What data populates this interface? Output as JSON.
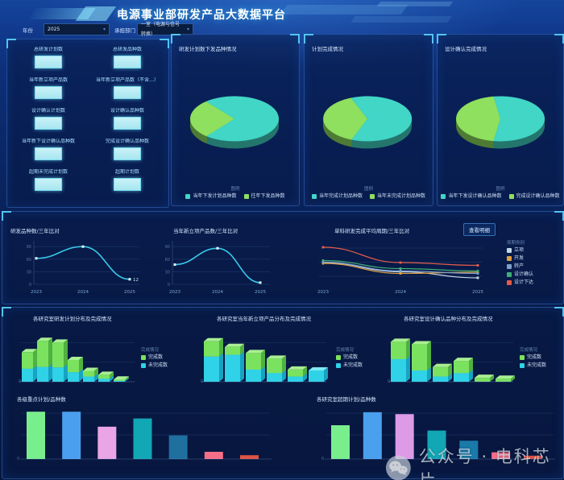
{
  "header": {
    "title": "电源事业部研发产品大数据平台",
    "filters": {
      "year_label": "年份",
      "year_value": "2025",
      "dept_label": "承担部门",
      "dept_value": "一室（电源与信号转换）"
    }
  },
  "stats_panel": {
    "cards": [
      {
        "label": "总研发计划数"
      },
      {
        "label": "总研发品种数"
      },
      {
        "label": "当年新立项产品数"
      },
      {
        "label": "当年新立项产品数（不含…）"
      },
      {
        "label": "设计确认计划数"
      },
      {
        "label": "设计确认品种数"
      },
      {
        "label": "当年新下设计确认品种数"
      },
      {
        "label": "完成设计确认品种数"
      },
      {
        "label": "超期未完成计划数"
      },
      {
        "label": "超期计划数"
      }
    ]
  },
  "middle": {
    "detail_button": "查看明细"
  },
  "watermark": {
    "icon": "wechat-icon",
    "text": "公众号 · 电科芯片"
  },
  "colors": {
    "accent_cyan": "#53c4f0",
    "pie_teal": "#41d6c6",
    "pie_green": "#8ee05e",
    "bar_cyan": "#2fd2e6",
    "bar_green": "#7be25f",
    "line_cyan": "#38c8e8"
  },
  "chart_data": [
    {
      "type": "pie",
      "title": "研发计划数下发品种情况",
      "labels": [
        "当年下发计划品种数",
        "往年下发品种数"
      ],
      "values": [
        72,
        28
      ],
      "colors": [
        "#41d6c6",
        "#8ee05e"
      ],
      "start_angle": 230,
      "legend_title": "图例",
      "legend_position": "bottom"
    },
    {
      "type": "pie",
      "title": "计划完成情况",
      "labels": [
        "当年完成计划品种数",
        "当年未完成计划品种数"
      ],
      "values": [
        62,
        38
      ],
      "colors": [
        "#41d6c6",
        "#8ee05e"
      ],
      "start_angle": 248,
      "legend_title": "图例",
      "legend_position": "bottom"
    },
    {
      "type": "pie",
      "title": "设计确认完成情况",
      "labels": [
        "当年下发设计确认品种数",
        "完成设计确认品种数"
      ],
      "values": [
        55,
        45
      ],
      "colors": [
        "#41d6c6",
        "#8ee05e"
      ],
      "start_angle": 261,
      "legend_title": "图例",
      "legend_position": "bottom"
    },
    {
      "type": "line",
      "title": "研发品种数/三年比对",
      "x": [
        "2023",
        "2024",
        "2025"
      ],
      "values": [
        62,
        90,
        12
      ],
      "end_label": "12",
      "color": "#38c8e8",
      "ylim": [
        0,
        100
      ],
      "y_ticks": [
        0,
        30,
        60,
        90
      ],
      "grid": true
    },
    {
      "type": "line",
      "title": "当年新立项产品数/三年比对",
      "x": [
        "2023",
        "2024",
        "2025"
      ],
      "values": [
        47,
        86,
        4
      ],
      "color": "#38c8e8",
      "ylim": [
        0,
        100
      ],
      "y_ticks": [
        0,
        30,
        60,
        90
      ],
      "grid": true
    },
    {
      "type": "multiline",
      "title": "单科研发完成平均周期/三年比对",
      "x": [
        "2023",
        "2024",
        "2025"
      ],
      "ylim": [
        0,
        100
      ],
      "grid": true,
      "legend_title": "周期类别",
      "legend_position": "right",
      "series": [
        {
          "name": "立项",
          "color": "#c3d6e8",
          "values": [
            54,
            31,
            16
          ]
        },
        {
          "name": "开发",
          "color": "#dfa23f",
          "values": [
            52,
            27,
            30
          ]
        },
        {
          "name": "转产",
          "color": "#7e9fcc",
          "values": [
            55,
            33,
            27
          ]
        },
        {
          "name": "设计确认",
          "color": "#3fae76",
          "values": [
            59,
            39,
            33
          ]
        },
        {
          "name": "设计下达",
          "color": "#e25c4a",
          "values": [
            92,
            54,
            47
          ]
        }
      ]
    },
    {
      "type": "bar3d",
      "title": "各研究室研发计划分布及完成情况",
      "legend_title": "完成情况",
      "labels": [
        "完成数",
        "未完成数"
      ],
      "legend_colors": [
        "#7be25f",
        "#2fd2e6"
      ],
      "ylim": [
        0,
        100
      ],
      "legend_position": "right",
      "bars": [
        [
          30,
          38
        ],
        [
          34,
          60
        ],
        [
          33,
          57
        ],
        [
          22,
          28
        ],
        [
          12,
          13
        ],
        [
          7,
          9
        ],
        [
          2,
          3
        ]
      ]
    },
    {
      "type": "bar3d",
      "title": "各研究室当年新立项产品分布及完成情况",
      "legend_title": "完成情况",
      "labels": [
        "完成数",
        "未完成数"
      ],
      "legend_colors": [
        "#7be25f",
        "#2fd2e6"
      ],
      "ylim": [
        0,
        100
      ],
      "legend_position": "right",
      "bars": [
        [
          58,
          35
        ],
        [
          62,
          18
        ],
        [
          28,
          38
        ],
        [
          20,
          33
        ],
        [
          12,
          16
        ],
        [
          26,
          0
        ]
      ]
    },
    {
      "type": "bar3d",
      "title": "各研究室设计确认品种分布及完成情况",
      "legend_title": "完成情况",
      "labels": [
        "完成数",
        "未完成数"
      ],
      "legend_colors": [
        "#7be25f",
        "#2fd2e6"
      ],
      "ylim": [
        0,
        100
      ],
      "legend_position": "right",
      "bars": [
        [
          52,
          40
        ],
        [
          26,
          60
        ],
        [
          12,
          22
        ],
        [
          20,
          28
        ],
        [
          0,
          9
        ],
        [
          0,
          7
        ]
      ]
    },
    {
      "type": "bar",
      "title": "各级重点计划/品种数",
      "ylim": [
        0,
        100
      ],
      "grid": true,
      "values": [
        98,
        98,
        67,
        84,
        49,
        15,
        8
      ],
      "colors": [
        "#79ee8d",
        "#4aa0ee",
        "#e9a5e5",
        "#12a7b4",
        "#1f6f9f",
        "#f56e87",
        "#df5343"
      ]
    },
    {
      "type": "bar",
      "title": "各研究室超期计划/品种数",
      "ylim": [
        0,
        100
      ],
      "grid": true,
      "values": [
        70,
        97,
        93,
        59,
        38,
        14,
        7
      ],
      "colors": [
        "#79ee8d",
        "#4aa0ee",
        "#dd9ae7",
        "#12a7b4",
        "#1a7aa8",
        "#f56e87",
        "#df5343"
      ]
    }
  ]
}
